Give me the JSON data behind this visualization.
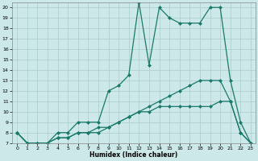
{
  "xlabel": "Humidex (Indice chaleur)",
  "bg_color": "#cce8e8",
  "grid_color": "#aacccc",
  "line_color": "#1a7a6a",
  "xlim": [
    -0.5,
    23.5
  ],
  "ylim": [
    7,
    20.5
  ],
  "xticks": [
    0,
    1,
    2,
    3,
    4,
    5,
    6,
    7,
    8,
    9,
    10,
    11,
    12,
    13,
    14,
    15,
    16,
    17,
    18,
    19,
    20,
    21,
    22,
    23
  ],
  "yticks": [
    7,
    8,
    9,
    10,
    11,
    12,
    13,
    14,
    15,
    16,
    17,
    18,
    19,
    20
  ],
  "line1_x": [
    0,
    1,
    2,
    3,
    4,
    5,
    6,
    7,
    8,
    9,
    10,
    11,
    12,
    13,
    14,
    15,
    16,
    17,
    18,
    19,
    20,
    21,
    22,
    23
  ],
  "line1_y": [
    8,
    7,
    7,
    7,
    8,
    8,
    9,
    9,
    9,
    12,
    12.5,
    13.5,
    20.5,
    14.5,
    20,
    19,
    18.5,
    18.5,
    18.5,
    20,
    20,
    13,
    9,
    7
  ],
  "line2_x": [
    0,
    1,
    2,
    3,
    4,
    5,
    6,
    7,
    8,
    9,
    10,
    11,
    12,
    13,
    14,
    15,
    16,
    17,
    18,
    19,
    20,
    21,
    22,
    23
  ],
  "line2_y": [
    8,
    7,
    7,
    7,
    7.5,
    7.5,
    8,
    8,
    8,
    8.5,
    9,
    9.5,
    10,
    10.5,
    11,
    11.5,
    12,
    12.5,
    13,
    13,
    13,
    11,
    8,
    7
  ],
  "line3_x": [
    0,
    1,
    2,
    3,
    4,
    5,
    6,
    7,
    8,
    9,
    10,
    11,
    12,
    13,
    14,
    15,
    16,
    17,
    18,
    19,
    20,
    21,
    22,
    23
  ],
  "line3_y": [
    8,
    7,
    7,
    7,
    7.5,
    7.5,
    8,
    8,
    8.5,
    8.5,
    9,
    9.5,
    10,
    10,
    10.5,
    10.5,
    10.5,
    10.5,
    10.5,
    10.5,
    11,
    11,
    8,
    7
  ]
}
